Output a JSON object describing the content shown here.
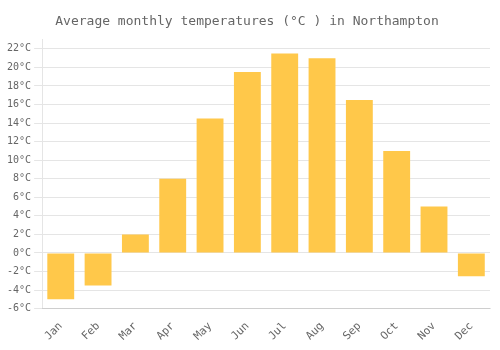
{
  "chart_data": {
    "type": "bar",
    "title": "Average monthly temperatures (°C ) in Northampton",
    "categories": [
      "Jan",
      "Feb",
      "Mar",
      "Apr",
      "May",
      "Jun",
      "Jul",
      "Aug",
      "Sep",
      "Oct",
      "Nov",
      "Dec"
    ],
    "values": [
      -5,
      -3.5,
      2,
      8,
      14.5,
      19.5,
      21.5,
      21,
      16.5,
      11,
      5,
      -2.5
    ],
    "color": "#FFC84A",
    "ylim": [
      -6,
      23
    ],
    "yticks": [
      {
        "value": -6,
        "label": "-6°C"
      },
      {
        "value": -4,
        "label": "-4°C"
      },
      {
        "value": -2,
        "label": "-2°C"
      },
      {
        "value": 0,
        "label": "0°C"
      },
      {
        "value": 2,
        "label": "2°C"
      },
      {
        "value": 4,
        "label": "4°C"
      },
      {
        "value": 6,
        "label": "6°C"
      },
      {
        "value": 8,
        "label": "8°C"
      },
      {
        "value": 10,
        "label": "10°C"
      },
      {
        "value": 12,
        "label": "12°C"
      },
      {
        "value": 14,
        "label": "14°C"
      },
      {
        "value": 16,
        "label": "16°C"
      },
      {
        "value": 18,
        "label": "18°C"
      },
      {
        "value": 20,
        "label": "20°C"
      },
      {
        "value": 22,
        "label": "22°C"
      }
    ],
    "grid": true
  }
}
